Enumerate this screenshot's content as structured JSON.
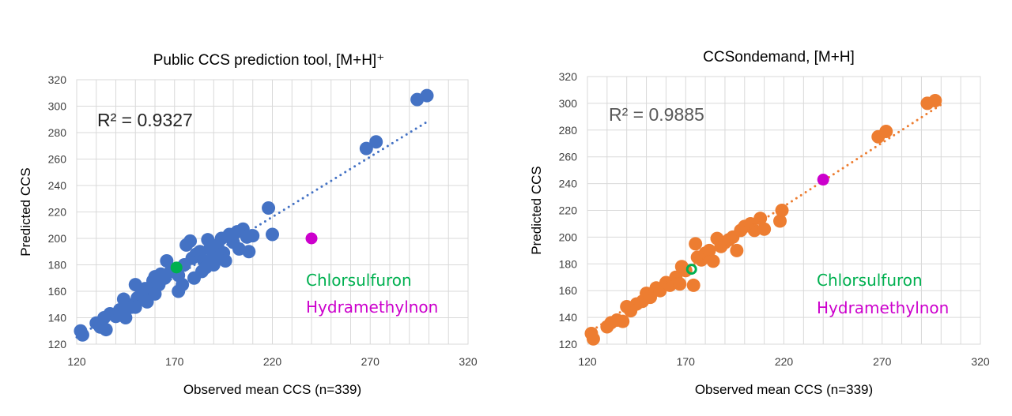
{
  "chart_data": [
    {
      "type": "scatter",
      "title": "Public CCS prediction tool, [M+H]⁺",
      "xlabel": "Observed mean CCS (n=339)",
      "ylabel": "Predicted CCS",
      "xlim": [
        120,
        320
      ],
      "ylim": [
        120,
        320
      ],
      "xticks": [
        120,
        170,
        220,
        270,
        320
      ],
      "yticks": [
        120,
        140,
        160,
        180,
        200,
        220,
        240,
        260,
        280,
        300,
        320
      ],
      "grid": true,
      "color": "#4472C4",
      "r2_label": "R² = 0.9327",
      "r2_color": "#262626",
      "trendline": {
        "slope": 0.91,
        "intercept": 16,
        "x_range": [
          120,
          300
        ]
      },
      "points": [
        [
          122,
          130
        ],
        [
          123,
          127
        ],
        [
          130,
          136
        ],
        [
          132,
          133
        ],
        [
          134,
          140
        ],
        [
          135,
          131
        ],
        [
          137,
          143
        ],
        [
          140,
          141
        ],
        [
          142,
          146
        ],
        [
          144,
          154
        ],
        [
          146,
          150
        ],
        [
          148,
          148
        ],
        [
          150,
          165
        ],
        [
          151,
          155
        ],
        [
          153,
          158
        ],
        [
          155,
          162
        ],
        [
          157,
          160
        ],
        [
          159,
          168
        ],
        [
          160,
          171
        ],
        [
          162,
          165
        ],
        [
          163,
          173
        ],
        [
          165,
          170
        ],
        [
          166,
          183
        ],
        [
          168,
          175
        ],
        [
          170,
          176
        ],
        [
          172,
          172
        ],
        [
          174,
          165
        ],
        [
          175,
          180
        ],
        [
          176,
          195
        ],
        [
          178,
          198
        ],
        [
          179,
          185
        ],
        [
          181,
          188
        ],
        [
          183,
          190
        ],
        [
          184,
          175
        ],
        [
          185,
          183
        ],
        [
          187,
          199
        ],
        [
          188,
          192
        ],
        [
          190,
          186
        ],
        [
          192,
          195
        ],
        [
          194,
          200
        ],
        [
          195,
          189
        ],
        [
          196,
          183
        ],
        [
          198,
          203
        ],
        [
          200,
          197
        ],
        [
          202,
          205
        ],
        [
          203,
          192
        ],
        [
          205,
          207
        ],
        [
          207,
          201
        ],
        [
          210,
          202
        ],
        [
          208,
          190
        ],
        [
          218,
          223
        ],
        [
          220,
          203
        ],
        [
          268,
          268
        ],
        [
          273,
          273
        ],
        [
          294,
          305
        ],
        [
          299,
          308
        ],
        [
          172,
          160
        ],
        [
          180,
          170
        ],
        [
          186,
          178
        ],
        [
          190,
          180
        ],
        [
          145,
          140
        ],
        [
          150,
          148
        ],
        [
          160,
          158
        ],
        [
          156,
          152
        ]
      ],
      "highlights": [
        {
          "name": "Chlorsulfuron",
          "x": 171,
          "y": 178,
          "color": "#00B050"
        },
        {
          "name": "Hydramethylnon",
          "x": 240,
          "y": 200,
          "color": "#CC00CC"
        }
      ]
    },
    {
      "type": "scatter",
      "title": "CCSondemand, [M+H]",
      "xlabel": "Observed mean CCS (n=339)",
      "ylabel": "Predicted CCS",
      "xlim": [
        120,
        320
      ],
      "ylim": [
        120,
        320
      ],
      "xticks": [
        120,
        170,
        220,
        270,
        320
      ],
      "yticks": [
        120,
        140,
        160,
        180,
        200,
        220,
        240,
        260,
        280,
        300,
        320
      ],
      "grid": true,
      "color": "#ED7D31",
      "r2_label": "R² = 0.9885",
      "r2_color": "#595959",
      "trendline": {
        "slope": 0.95,
        "intercept": 14,
        "x_range": [
          120,
          300
        ]
      },
      "points": [
        [
          122,
          128
        ],
        [
          123,
          124
        ],
        [
          130,
          133
        ],
        [
          132,
          136
        ],
        [
          135,
          138
        ],
        [
          138,
          137
        ],
        [
          140,
          148
        ],
        [
          142,
          145
        ],
        [
          145,
          150
        ],
        [
          148,
          152
        ],
        [
          150,
          158
        ],
        [
          152,
          155
        ],
        [
          155,
          162
        ],
        [
          157,
          160
        ],
        [
          160,
          166
        ],
        [
          162,
          164
        ],
        [
          165,
          170
        ],
        [
          167,
          165
        ],
        [
          168,
          178
        ],
        [
          170,
          175
        ],
        [
          174,
          164
        ],
        [
          175,
          195
        ],
        [
          176,
          185
        ],
        [
          178,
          183
        ],
        [
          180,
          188
        ],
        [
          182,
          190
        ],
        [
          184,
          182
        ],
        [
          186,
          199
        ],
        [
          188,
          193
        ],
        [
          190,
          196
        ],
        [
          192,
          198
        ],
        [
          194,
          200
        ],
        [
          196,
          190
        ],
        [
          198,
          205
        ],
        [
          200,
          208
        ],
        [
          203,
          210
        ],
        [
          205,
          205
        ],
        [
          208,
          214
        ],
        [
          210,
          206
        ],
        [
          218,
          212
        ],
        [
          219,
          220
        ],
        [
          268,
          275
        ],
        [
          272,
          279
        ],
        [
          293,
          300
        ],
        [
          297,
          302
        ]
      ],
      "highlights": [
        {
          "name": "Chlorsulfuron",
          "x": 173,
          "y": 176,
          "color": "#00B050"
        },
        {
          "name": "Hydramethylnon",
          "x": 240,
          "y": 243,
          "color": "#CC00CC"
        }
      ]
    }
  ]
}
